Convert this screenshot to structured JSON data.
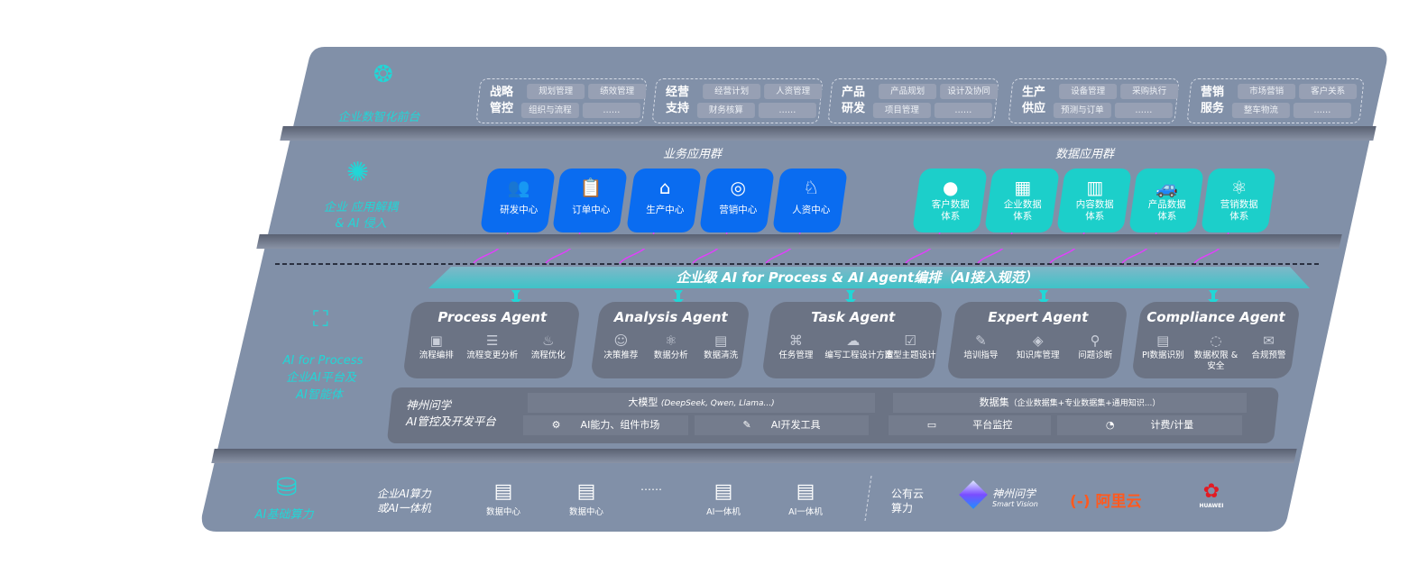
{
  "colors": {
    "panel": "#8190a8",
    "blue_card": "#0a6cf0",
    "teal_card": "#1ccfca",
    "accent_cyan": "#22d6d6",
    "arrow_magenta": "#e040fb",
    "agent_card": "#6b7384"
  },
  "layer1": {
    "label": "企业数智化前台",
    "icon": "brain-icon",
    "groups": [
      {
        "title": "战略\n管控",
        "items": [
          "规划管理",
          "绩效管理",
          "组织与流程",
          "……"
        ]
      },
      {
        "title": "经营\n支持",
        "items": [
          "经营计划",
          "人资管理",
          "财务核算",
          "……"
        ]
      },
      {
        "title": "产品\n研发",
        "items": [
          "产品规划",
          "设计及协同",
          "项目管理",
          "……"
        ]
      },
      {
        "title": "生产\n供应",
        "items": [
          "设备管理",
          "采购执行",
          "预测与订单",
          "……"
        ]
      },
      {
        "title": "营销\n服务",
        "items": [
          "市场营销",
          "客户关系",
          "整车物流",
          "……"
        ]
      }
    ]
  },
  "layer2": {
    "label_line1": "企业 应用解耦",
    "label_line2": "& AI 侵入",
    "icon": "molecule-icon",
    "business_title": "业务应用群",
    "business": [
      {
        "label": "研发中心",
        "icon": "people-icon"
      },
      {
        "label": "订单中心",
        "icon": "clipboard-icon"
      },
      {
        "label": "生产中心",
        "icon": "factory-icon"
      },
      {
        "label": "营销中心",
        "icon": "target-icon"
      },
      {
        "label": "人资中心",
        "icon": "person-wave-icon"
      }
    ],
    "data_title": "数据应用群",
    "data": [
      {
        "label": "客户数据\n体系",
        "icon": "user-icon"
      },
      {
        "label": "企业数据\n体系",
        "icon": "building-icon"
      },
      {
        "label": "内容数据\n体系",
        "icon": "books-icon"
      },
      {
        "label": "产品数据\n体系",
        "icon": "car-icon"
      },
      {
        "label": "营销数据\n体系",
        "icon": "atom-icon"
      }
    ]
  },
  "banner": "企业级 AI for Process & AI Agent编排（AI接入规范）",
  "layer3": {
    "label_line1": "AI for Process",
    "label_line2": "企业AI平台及",
    "label_line3": "AI智能体",
    "icon": "face-scan-icon",
    "agents": [
      {
        "title": "Process Agent",
        "items": [
          "流程编排",
          "流程变更分析",
          "流程优化"
        ]
      },
      {
        "title": "Analysis Agent",
        "items": [
          "决策推荐",
          "数据分析",
          "数据清洗"
        ]
      },
      {
        "title": "Task Agent",
        "items": [
          "任务管理",
          "编写工程设计方案",
          "造型主题设计"
        ]
      },
      {
        "title": "Expert Agent",
        "items": [
          "培训指导",
          "知识库管理",
          "问题诊断"
        ]
      },
      {
        "title": "Compliance Agent",
        "items": [
          "PI数据识别",
          "数据权限 &\n安全",
          "合规预警"
        ]
      }
    ],
    "platform": {
      "title_line1": "神州问学",
      "title_line2": "AI管控及开发平台",
      "model": "大模型",
      "model_note": "(DeepSeek, Qwen, Llama...)",
      "dataset": "数据集",
      "dataset_note": "（企业数据集+专业数据集+通用知识...）",
      "tools": [
        "AI能力、组件市场",
        "AI开发工具",
        "平台监控",
        "计费/计量"
      ]
    }
  },
  "layer4": {
    "label": "AI基础算力",
    "icon": "database-icon",
    "private_label": "企业AI算力\n或AI一体机",
    "servers": [
      "数据中心",
      "数据中心",
      "AI一体机",
      "AI一体机"
    ],
    "ellipsis": "……",
    "public_label": "公有云\n算力",
    "vendors": [
      {
        "name": "神州问学",
        "sub": "Smart Vision"
      },
      {
        "name": "阿里云",
        "mark": "(-)"
      },
      {
        "name": "HUAWEI"
      }
    ]
  }
}
